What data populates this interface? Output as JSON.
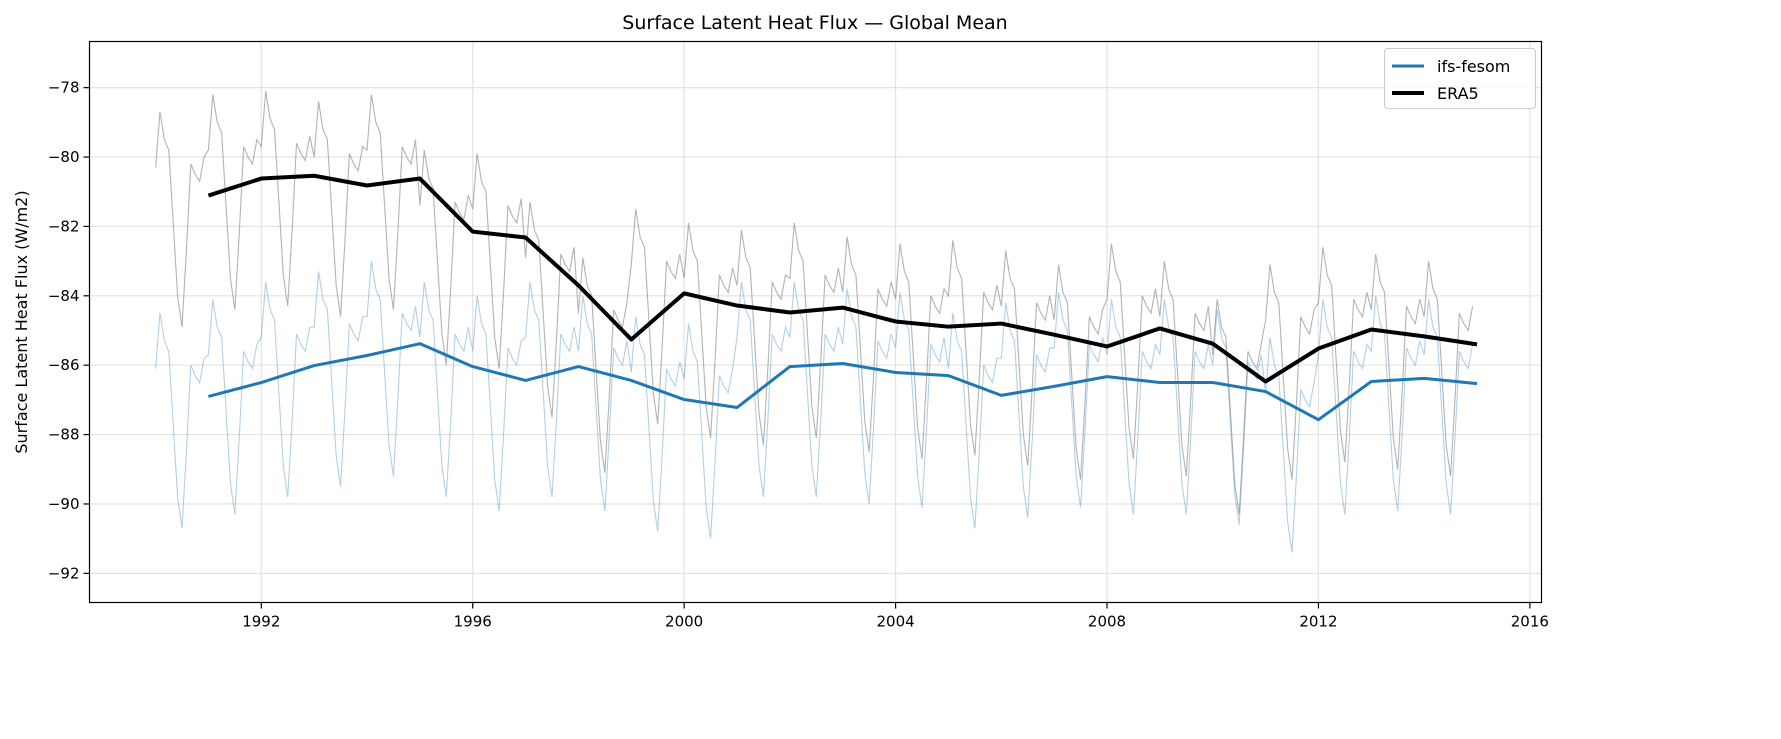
{
  "chart_data": {
    "type": "line",
    "title": "Surface Latent Heat Flux — Global Mean",
    "xlabel": "",
    "ylabel": "Surface Latent Heat Flux (W/m2)",
    "xlim": [
      1988.75,
      2016.22
    ],
    "ylim": [
      -92.84,
      -76.67
    ],
    "xticks": [
      1992,
      1996,
      2000,
      2004,
      2008,
      2012,
      2016
    ],
    "yticks": [
      -78,
      -80,
      -82,
      -84,
      -86,
      -88,
      -90,
      -92
    ],
    "grid": true,
    "legend_position": "top-right",
    "series": [
      {
        "name": "ifs-fesom",
        "color": "#1f77b4",
        "annual_x": [
          1991,
          1992,
          1993,
          1994,
          1995,
          1996,
          1997,
          1998,
          1999,
          2000,
          2001,
          2002,
          2003,
          2004,
          2005,
          2006,
          2007,
          2008,
          2009,
          2010,
          2011,
          2012,
          2013,
          2014,
          2015
        ],
        "annual_y": [
          -86.9,
          -86.5,
          -86.01,
          -85.72,
          -85.38,
          -86.04,
          -86.44,
          -86.04,
          -86.44,
          -86.99,
          -87.22,
          -86.04,
          -85.95,
          -86.21,
          -86.3,
          -86.87,
          -86.61,
          -86.33,
          -86.5,
          -86.5,
          -86.76,
          -87.57,
          -86.47,
          -86.38,
          -86.53
        ],
        "monthly": {
          "1990": [
            -86.1,
            -84.5,
            -85.3,
            -85.6,
            -87.7,
            -89.8,
            -90.7,
            -88.5,
            -86.0,
            -86.3,
            -86.5,
            -85.8
          ],
          "1991": [
            -85.7,
            -84.1,
            -84.9,
            -85.2,
            -87.3,
            -89.4,
            -90.3,
            -88.1,
            -85.6,
            -85.9,
            -86.1,
            -85.4
          ],
          "1992": [
            -85.2,
            -83.6,
            -84.4,
            -84.7,
            -86.8,
            -88.9,
            -89.8,
            -87.6,
            -85.1,
            -85.4,
            -85.6,
            -84.9
          ],
          "1993": [
            -84.9,
            -83.3,
            -84.1,
            -84.4,
            -86.5,
            -88.6,
            -89.5,
            -87.3,
            -84.8,
            -85.1,
            -85.3,
            -84.6
          ],
          "1994": [
            -84.6,
            -83.0,
            -83.8,
            -84.1,
            -86.2,
            -88.3,
            -89.2,
            -87.0,
            -84.5,
            -84.8,
            -85.0,
            -84.3
          ],
          "1995": [
            -85.2,
            -83.6,
            -84.4,
            -84.7,
            -86.8,
            -88.9,
            -89.8,
            -87.6,
            -85.1,
            -85.4,
            -85.6,
            -84.9
          ],
          "1996": [
            -85.6,
            -84.0,
            -84.8,
            -85.1,
            -87.2,
            -89.3,
            -90.2,
            -88.0,
            -85.5,
            -85.8,
            -86.0,
            -85.3
          ],
          "1997": [
            -85.2,
            -83.6,
            -84.4,
            -84.7,
            -86.8,
            -88.9,
            -89.8,
            -87.6,
            -85.1,
            -85.4,
            -85.6,
            -84.9
          ],
          "1998": [
            -85.6,
            -84.0,
            -84.8,
            -85.1,
            -87.2,
            -89.3,
            -90.2,
            -88.0,
            -85.5,
            -85.8,
            -86.0,
            -85.3
          ],
          "1999": [
            -86.2,
            -84.6,
            -85.4,
            -85.7,
            -87.8,
            -89.9,
            -90.8,
            -88.6,
            -86.1,
            -86.4,
            -86.6,
            -85.9
          ],
          "2000": [
            -86.4,
            -84.8,
            -85.6,
            -85.9,
            -88.0,
            -90.1,
            -91.0,
            -88.8,
            -86.3,
            -86.6,
            -86.8,
            -86.1
          ],
          "2001": [
            -85.2,
            -83.6,
            -84.4,
            -84.7,
            -86.8,
            -88.9,
            -89.8,
            -87.6,
            -85.1,
            -85.4,
            -85.6,
            -84.9
          ],
          "2002": [
            -85.2,
            -83.6,
            -84.4,
            -84.7,
            -86.8,
            -88.9,
            -89.8,
            -87.6,
            -85.1,
            -85.4,
            -85.6,
            -84.9
          ],
          "2003": [
            -85.4,
            -83.8,
            -84.6,
            -84.9,
            -87.0,
            -89.1,
            -90.0,
            -87.8,
            -85.3,
            -85.6,
            -85.8,
            -85.1
          ],
          "2004": [
            -85.5,
            -83.9,
            -84.7,
            -85.0,
            -87.1,
            -89.2,
            -90.1,
            -87.9,
            -85.4,
            -85.7,
            -85.9,
            -85.2
          ],
          "2005": [
            -86.1,
            -84.5,
            -85.3,
            -85.6,
            -87.7,
            -89.8,
            -90.7,
            -88.5,
            -86.0,
            -86.3,
            -86.5,
            -85.8
          ],
          "2006": [
            -85.8,
            -84.2,
            -85.0,
            -85.3,
            -87.4,
            -89.5,
            -90.4,
            -88.2,
            -85.7,
            -86.0,
            -86.2,
            -85.5
          ],
          "2007": [
            -85.5,
            -83.9,
            -84.7,
            -85.0,
            -87.1,
            -89.2,
            -90.1,
            -87.9,
            -85.4,
            -85.7,
            -85.9,
            -85.2
          ],
          "2008": [
            -85.7,
            -84.1,
            -84.9,
            -85.2,
            -87.3,
            -89.4,
            -90.3,
            -88.1,
            -85.6,
            -85.9,
            -86.1,
            -85.4
          ],
          "2009": [
            -85.7,
            -84.1,
            -84.9,
            -85.2,
            -87.3,
            -89.4,
            -90.3,
            -88.1,
            -85.6,
            -85.9,
            -86.1,
            -85.4
          ],
          "2010": [
            -86.0,
            -84.4,
            -85.2,
            -85.5,
            -87.6,
            -89.7,
            -90.6,
            -88.4,
            -85.9,
            -86.2,
            -86.4,
            -85.7
          ],
          "2011": [
            -86.8,
            -85.2,
            -86.0,
            -86.3,
            -88.4,
            -90.5,
            -91.4,
            -89.2,
            -86.7,
            -87.0,
            -87.2,
            -86.5
          ],
          "2012": [
            -85.7,
            -84.1,
            -84.9,
            -85.2,
            -87.3,
            -89.4,
            -90.3,
            -88.1,
            -85.6,
            -85.9,
            -86.1,
            -85.4
          ],
          "2013": [
            -85.6,
            -84.0,
            -84.8,
            -85.1,
            -87.2,
            -89.3,
            -90.2,
            -88.0,
            -85.5,
            -85.8,
            -86.0,
            -85.3
          ],
          "2014": [
            -85.7,
            -84.1,
            -84.9,
            -85.2,
            -87.3,
            -89.4,
            -90.3,
            -88.1,
            -85.6,
            -85.9,
            -86.1,
            -85.4
          ]
        }
      },
      {
        "name": "ERA5",
        "color": "#000000",
        "monthly_color": "#808080",
        "annual_x": [
          1991,
          1992,
          1993,
          1994,
          1995,
          1996,
          1997,
          1998,
          1999,
          2000,
          2001,
          2002,
          2003,
          2004,
          2005,
          2006,
          2007,
          2008,
          2009,
          2010,
          2011,
          2012,
          2013,
          2014,
          2015
        ],
        "annual_y": [
          -81.11,
          -80.62,
          -80.54,
          -80.82,
          -80.62,
          -82.15,
          -82.32,
          -83.7,
          -85.26,
          -83.93,
          -84.28,
          -84.48,
          -84.34,
          -84.74,
          -84.89,
          -84.8,
          -85.12,
          -85.46,
          -84.94,
          -85.38,
          -86.47,
          -85.52,
          -84.97,
          -85.17,
          -85.4
        ],
        "monthly": {
          "1990": [
            -80.3,
            -78.7,
            -79.5,
            -79.8,
            -81.9,
            -84.0,
            -84.9,
            -82.7,
            -80.2,
            -80.5,
            -80.7,
            -80.0
          ],
          "1991": [
            -79.8,
            -78.2,
            -79.0,
            -79.3,
            -81.4,
            -83.5,
            -84.4,
            -82.2,
            -79.7,
            -80.0,
            -80.2,
            -79.5
          ],
          "1992": [
            -79.7,
            -78.1,
            -78.9,
            -79.2,
            -81.3,
            -83.4,
            -84.3,
            -82.1,
            -79.6,
            -79.9,
            -80.1,
            -79.4
          ],
          "1993": [
            -80.0,
            -78.4,
            -79.2,
            -79.5,
            -81.6,
            -83.7,
            -84.6,
            -82.4,
            -79.9,
            -80.2,
            -80.4,
            -79.7
          ],
          "1994": [
            -79.8,
            -78.2,
            -79.0,
            -79.3,
            -81.4,
            -83.5,
            -84.4,
            -82.2,
            -79.7,
            -80.0,
            -80.2,
            -79.5
          ],
          "1995": [
            -81.4,
            -79.8,
            -80.6,
            -80.9,
            -83.0,
            -85.1,
            -86.0,
            -83.8,
            -81.3,
            -81.6,
            -81.8,
            -81.1
          ],
          "1996": [
            -81.5,
            -79.9,
            -80.7,
            -81.0,
            -83.1,
            -85.2,
            -86.1,
            -83.9,
            -81.4,
            -81.7,
            -81.9,
            -81.2
          ],
          "1997": [
            -82.9,
            -81.3,
            -82.1,
            -82.4,
            -84.5,
            -86.6,
            -87.5,
            -85.3,
            -82.8,
            -83.1,
            -83.3,
            -82.6
          ],
          "1998": [
            -84.5,
            -82.9,
            -83.7,
            -84.0,
            -86.1,
            -88.2,
            -89.1,
            -86.9,
            -84.4,
            -84.7,
            -84.9,
            -84.2
          ],
          "1999": [
            -83.1,
            -81.5,
            -82.3,
            -82.6,
            -84.7,
            -86.8,
            -87.7,
            -85.5,
            -83.0,
            -83.3,
            -83.5,
            -82.8
          ],
          "2000": [
            -83.5,
            -81.9,
            -82.7,
            -83.0,
            -85.1,
            -87.2,
            -88.1,
            -85.9,
            -83.4,
            -83.7,
            -83.9,
            -83.2
          ],
          "2001": [
            -83.7,
            -82.1,
            -82.9,
            -83.2,
            -85.3,
            -87.4,
            -88.3,
            -86.1,
            -83.6,
            -83.9,
            -84.1,
            -83.4
          ],
          "2002": [
            -83.5,
            -81.9,
            -82.7,
            -83.0,
            -85.1,
            -87.2,
            -88.1,
            -85.9,
            -83.4,
            -83.7,
            -83.9,
            -83.2
          ],
          "2003": [
            -83.9,
            -82.3,
            -83.1,
            -83.4,
            -85.5,
            -87.6,
            -88.5,
            -86.3,
            -83.8,
            -84.1,
            -84.3,
            -83.6
          ],
          "2004": [
            -84.1,
            -82.5,
            -83.3,
            -83.6,
            -85.7,
            -87.8,
            -88.7,
            -86.5,
            -84.0,
            -84.3,
            -84.5,
            -83.8
          ],
          "2005": [
            -84.0,
            -82.4,
            -83.2,
            -83.5,
            -85.6,
            -87.7,
            -88.6,
            -86.4,
            -83.9,
            -84.2,
            -84.4,
            -83.7
          ],
          "2006": [
            -84.3,
            -82.7,
            -83.5,
            -83.8,
            -85.9,
            -88.0,
            -88.9,
            -86.7,
            -84.2,
            -84.5,
            -84.7,
            -84.0
          ],
          "2007": [
            -84.7,
            -83.1,
            -83.9,
            -84.2,
            -86.3,
            -88.4,
            -89.3,
            -87.1,
            -84.6,
            -84.9,
            -85.1,
            -84.4
          ],
          "2008": [
            -84.1,
            -82.5,
            -83.3,
            -83.6,
            -85.7,
            -87.8,
            -88.7,
            -86.5,
            -84.0,
            -84.3,
            -84.5,
            -83.8
          ],
          "2009": [
            -84.6,
            -83.0,
            -83.8,
            -84.1,
            -86.2,
            -88.3,
            -89.2,
            -87.0,
            -84.5,
            -84.8,
            -85.0,
            -84.3
          ],
          "2010": [
            -85.7,
            -84.1,
            -84.9,
            -85.2,
            -87.3,
            -89.4,
            -90.3,
            -88.1,
            -85.6,
            -85.9,
            -86.1,
            -85.4
          ],
          "2011": [
            -84.7,
            -83.1,
            -83.9,
            -84.2,
            -86.3,
            -88.4,
            -89.3,
            -87.1,
            -84.6,
            -84.9,
            -85.1,
            -84.4
          ],
          "2012": [
            -84.2,
            -82.6,
            -83.4,
            -83.7,
            -85.8,
            -87.9,
            -88.8,
            -86.6,
            -84.1,
            -84.4,
            -84.6,
            -83.9
          ],
          "2013": [
            -84.4,
            -82.8,
            -83.6,
            -83.9,
            -86.0,
            -88.1,
            -89.0,
            -86.8,
            -84.3,
            -84.6,
            -84.8,
            -84.1
          ],
          "2014": [
            -84.6,
            -83.0,
            -83.8,
            -84.1,
            -86.2,
            -88.3,
            -89.2,
            -87.0,
            -84.5,
            -84.8,
            -85.0,
            -84.3
          ]
        }
      }
    ]
  }
}
